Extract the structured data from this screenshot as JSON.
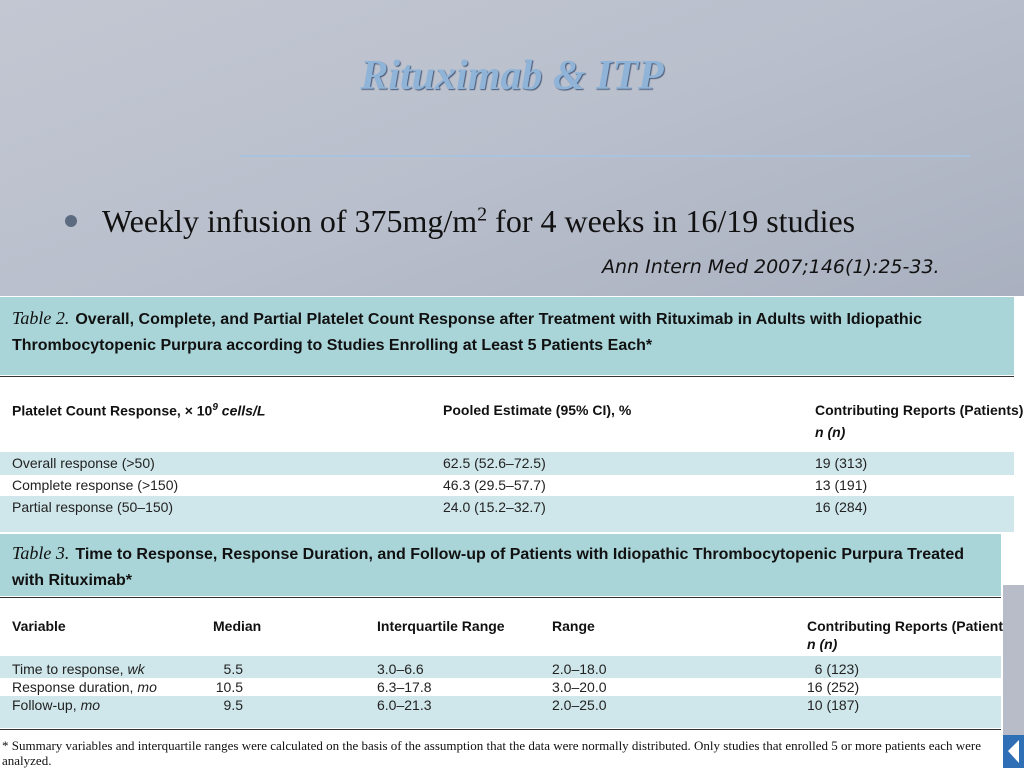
{
  "title": "Rituximab & ITP",
  "bullet": {
    "text_before": "Weekly infusion of 375mg/m",
    "superscript": "2",
    "text_after": "for 4 weeks in 16/19 studies"
  },
  "citation": "Ann Intern Med 2007;146(1):25-33.",
  "table2": {
    "label": "Table 2.",
    "caption": "Overall, Complete, and Partial Platelet Count Response after Treatment with Rituximab in Adults with Idiopathic Thrombocytopenic Purpura according to Studies Enrolling at Least 5 Patients Each*",
    "headers": {
      "response": "Platelet Count Response, × 10",
      "exponent": "9",
      "unit": "cells/L",
      "estimate": "Pooled Estimate (95% CI), %",
      "reports": "Contributing Reports (Patients),",
      "reports_n": "n (n)"
    },
    "rows": [
      [
        "Overall response (>50)",
        "62.5 (52.6–72.5)",
        "19 (313)"
      ],
      [
        "Complete response (>150)",
        "46.3 (29.5–57.7)",
        "13 (191)"
      ],
      [
        "Partial response (50–150)",
        "24.0 (15.2–32.7)",
        "16 (284)"
      ]
    ]
  },
  "table3": {
    "label": "Table 3.",
    "caption": "Time to Response, Response Duration, and Follow-up of Patients with Idiopathic Thrombocytopenic Purpura Treated with Rituximab*",
    "headers": {
      "variable": "Variable",
      "median": "Median",
      "iqr": "Interquartile Range",
      "range": "Range",
      "reports": "Contributing Reports (Patients),",
      "reports_n": "n (n)"
    },
    "rows": [
      [
        "Time to response,",
        "wk",
        "5.5",
        "3.0–6.6",
        "2.0–18.0",
        "6 (123)"
      ],
      [
        "Response duration,",
        "mo",
        "10.5",
        "6.3–17.8",
        "3.0–20.0",
        "16 (252)"
      ],
      [
        "Follow-up,",
        "mo",
        "9.5",
        "6.0–21.3",
        "2.0–25.0",
        "10 (187)"
      ]
    ],
    "footnote": "* Summary variables and interquartile ranges were calculated on the basis of the assumption that the data were normally distributed. Only studies that enrolled 5 or more patients each were analyzed."
  }
}
